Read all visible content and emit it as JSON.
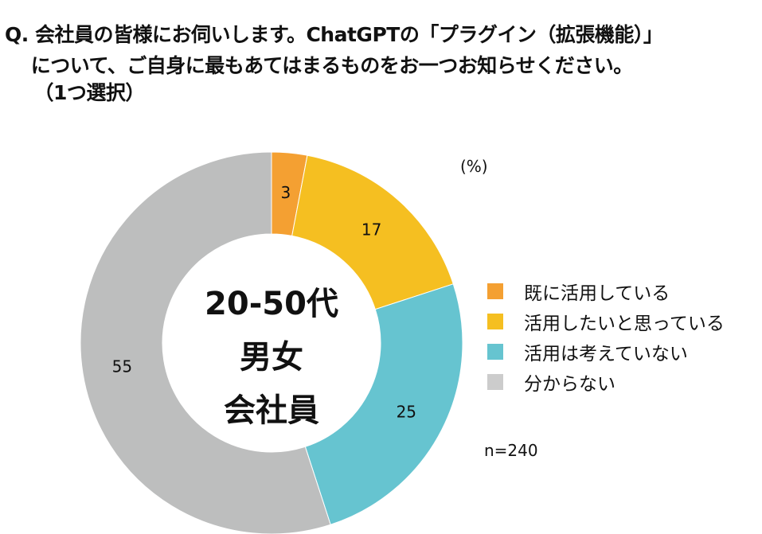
{
  "title_lines": [
    "Q. 会社員の皆様にお伺いします。ChatGPTの「プラグイン（拡張機能）」",
    "　 について、ご自身に最もあてはまるものをお一つお知らせください。",
    "　　（1つ選択）"
  ],
  "chart_data": {
    "type": "pie",
    "donut": true,
    "unit_label": "(%)",
    "center_text": [
      "20-50代",
      "男女",
      "会社員"
    ],
    "note": "n=240",
    "legend_position": "right",
    "slices": [
      {
        "label": "既に活用している",
        "value": 3,
        "color": "#f4a032",
        "legend_color": "#f4a032"
      },
      {
        "label": "活用したいと思っている",
        "value": 17,
        "color": "#f5bf21",
        "legend_color": "#f5bf21"
      },
      {
        "label": "活用は考えていない",
        "value": 25,
        "color": "#66c4d0",
        "legend_color": "#66c4d0"
      },
      {
        "label": "分からない",
        "value": 55,
        "color": "#bdbebe",
        "legend_color": "#cccccc"
      }
    ]
  }
}
